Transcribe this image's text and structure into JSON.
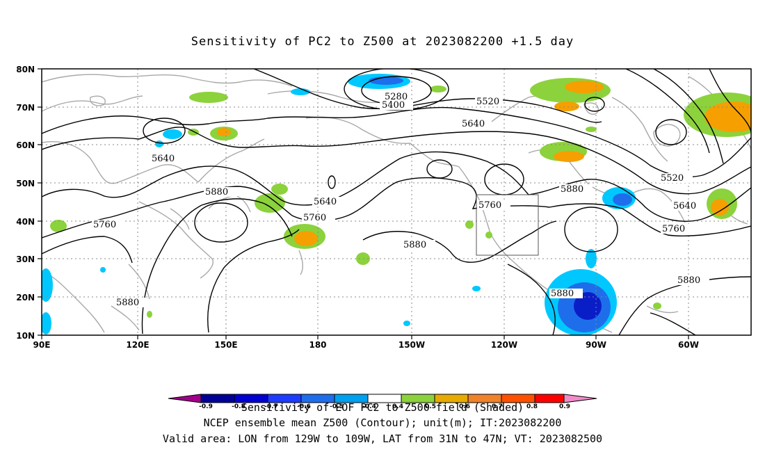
{
  "title": "Sensitivity of PC2 to Z500 at 2023082200 +1.5 day",
  "axes": {
    "lon_labels": [
      "90E",
      "120E",
      "150E",
      "180",
      "150W",
      "120W",
      "90W",
      "60W"
    ],
    "lat_labels": [
      "80N",
      "70N",
      "60N",
      "50N",
      "40N",
      "30N",
      "20N",
      "10N"
    ]
  },
  "contours": {
    "levels": [
      5280,
      5400,
      5520,
      5640,
      5760,
      5880
    ],
    "labels": [
      {
        "text": "5280"
      },
      {
        "text": "5400"
      },
      {
        "text": "5520"
      },
      {
        "text": "5640"
      },
      {
        "text": "5640"
      },
      {
        "text": "5880"
      },
      {
        "text": "5640"
      },
      {
        "text": "5760"
      },
      {
        "text": "5760"
      },
      {
        "text": "5760"
      },
      {
        "text": "5880"
      },
      {
        "text": "5880"
      },
      {
        "text": "5880"
      },
      {
        "text": "5520"
      },
      {
        "text": "5640"
      },
      {
        "text": "5760"
      },
      {
        "text": "5880"
      },
      {
        "text": "5880"
      }
    ]
  },
  "valid_area_box": {
    "lon": [
      "129W",
      "109W"
    ],
    "lat": [
      "31N",
      "47N"
    ]
  },
  "colorbar": {
    "labels": [
      "-0.9",
      "-0.8",
      "-0.7",
      "-0.6",
      "-0.5",
      "-0.4",
      "0.4",
      "0.5",
      "0.6",
      "0.7",
      "0.8",
      "0.9"
    ],
    "colors": [
      "#a0008c",
      "#000096",
      "#0000d2",
      "#1e3cff",
      "#1e6eeb",
      "#00a0f0",
      "#00c8ff",
      "#ffffff",
      "#8cd23c",
      "#e6aa00",
      "#f08228",
      "#ff5000",
      "#e61414",
      "#ff0000",
      "#f08cc8"
    ]
  },
  "shading_colors": {
    "pos_low": "#8cd23c",
    "pos_mid": "#f5a000",
    "neg_low": "#00c8ff",
    "neg_mid": "#1e6eeb",
    "neg_high": "#0a1ec8"
  },
  "caption": {
    "line1": "Sensitivity of EOF PC2 to Z500 field (Shaded)",
    "line2": "NCEP ensemble mean Z500 (Contour); unit(m); IT:2023082200",
    "line3": "Valid area: LON from 129W to 109W, LAT from 31N to 47N; VT: 2023082500"
  }
}
